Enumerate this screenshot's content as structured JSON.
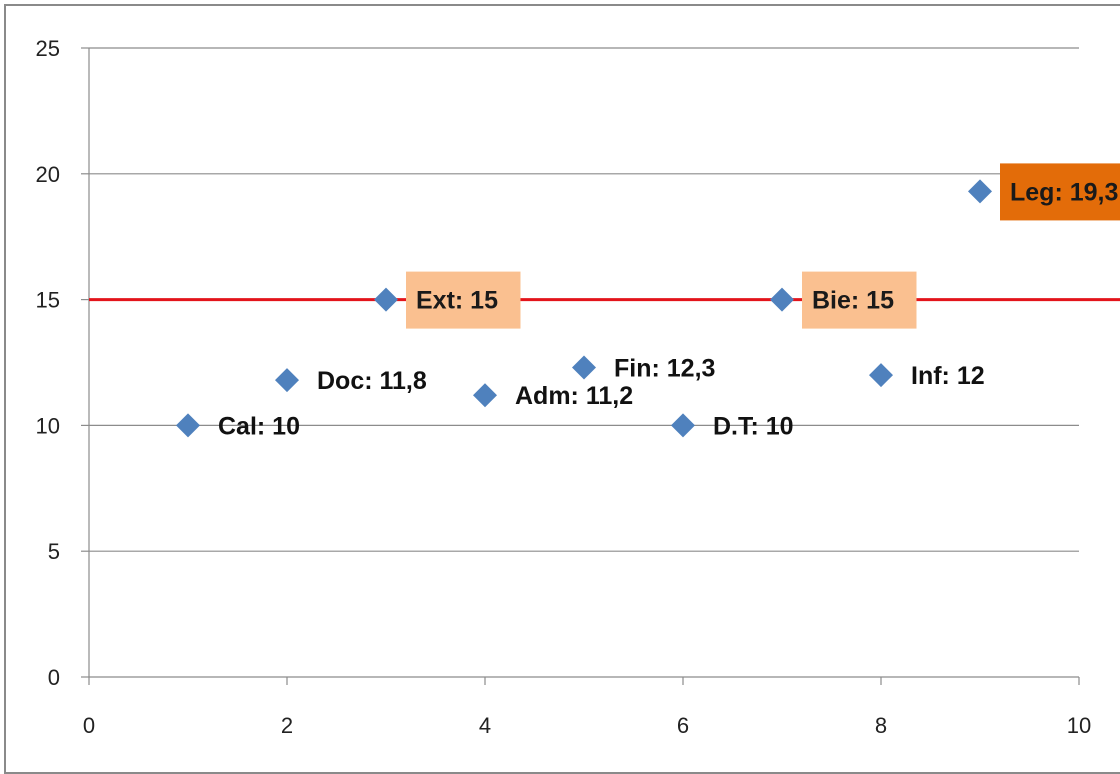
{
  "chart_data": {
    "type": "scatter",
    "xlim": [
      0,
      10
    ],
    "ylim": [
      0,
      25
    ],
    "x_ticks": [
      0,
      2,
      4,
      6,
      8,
      10
    ],
    "y_ticks": [
      0,
      5,
      10,
      15,
      20,
      25
    ],
    "grid": "horizontal",
    "legend": "none",
    "threshold_line": {
      "y": 15,
      "color": "#e3141b"
    },
    "marker_color": "#4f81bd",
    "points": [
      {
        "x": 1,
        "y": 10,
        "label": "Cal: 10",
        "highlight": "none"
      },
      {
        "x": 2,
        "y": 11.8,
        "label": "Doc: 11,8",
        "highlight": "none"
      },
      {
        "x": 3,
        "y": 15,
        "label": "Ext: 15",
        "highlight": "light"
      },
      {
        "x": 4,
        "y": 11.2,
        "label": "Adm: 11,2",
        "highlight": "none"
      },
      {
        "x": 5,
        "y": 12.3,
        "label": "Fin: 12,3",
        "highlight": "none"
      },
      {
        "x": 6,
        "y": 10,
        "label": "D.T: 10",
        "highlight": "none"
      },
      {
        "x": 7,
        "y": 15,
        "label": "Bie: 15",
        "highlight": "light"
      },
      {
        "x": 8,
        "y": 12,
        "label": "Inf: 12",
        "highlight": "none"
      },
      {
        "x": 9,
        "y": 19.3,
        "label": "Leg: 19,3",
        "highlight": "strong"
      }
    ],
    "highlight_colors": {
      "light": {
        "fill": "#fac090",
        "text": "#1a1a1a"
      },
      "strong": {
        "fill": "#e36c09",
        "text": "#1a1a1a"
      },
      "none": {
        "fill": "none",
        "text": "#111111"
      }
    }
  }
}
